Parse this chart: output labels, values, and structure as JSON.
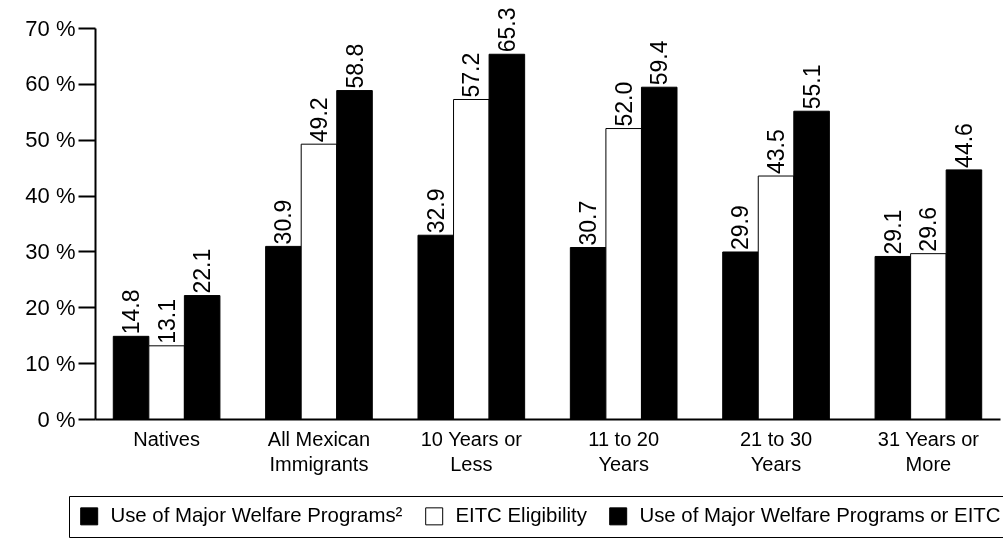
{
  "chart_data": {
    "type": "bar",
    "categories": [
      "Natives",
      "All Mexican Immigrants",
      "10 Years or Less",
      "11 to 20 Years",
      "21 to 30 Years",
      "31 Years or More"
    ],
    "series": [
      {
        "name": "Use of Major Welfare Programs²",
        "color": "#000000",
        "values": [
          14.8,
          30.9,
          32.9,
          30.7,
          29.9,
          29.1
        ],
        "value_labels": [
          "14.8",
          "30.9",
          "32.9",
          "30.7",
          "29.9",
          "29.1"
        ]
      },
      {
        "name": "EITC Eligibility",
        "color": "#ffffff",
        "values": [
          13.1,
          49.2,
          57.2,
          52.0,
          43.5,
          29.6
        ],
        "value_labels": [
          "13.1",
          "49.2",
          "57.2",
          "52.0",
          "43.5",
          "29.6"
        ]
      },
      {
        "name": "Use of Major Welfare Programs or EITC",
        "color": "#000000",
        "values": [
          22.1,
          58.8,
          65.3,
          59.4,
          55.1,
          44.6
        ],
        "value_labels": [
          "22.1",
          "58.8",
          "65.3",
          "59.4",
          "55.1",
          "44.6"
        ]
      }
    ],
    "ylim": [
      0,
      70
    ],
    "yticks": [
      {
        "value": 0,
        "label": "0 %"
      },
      {
        "value": 10,
        "label": "10 %"
      },
      {
        "value": 20,
        "label": "20 %"
      },
      {
        "value": 30,
        "label": "30 %"
      },
      {
        "value": 40,
        "label": "40 %"
      },
      {
        "value": 50,
        "label": "50 %"
      },
      {
        "value": 60,
        "label": "60 %"
      },
      {
        "value": 70,
        "label": "70 %"
      }
    ],
    "legend": "bottom"
  }
}
